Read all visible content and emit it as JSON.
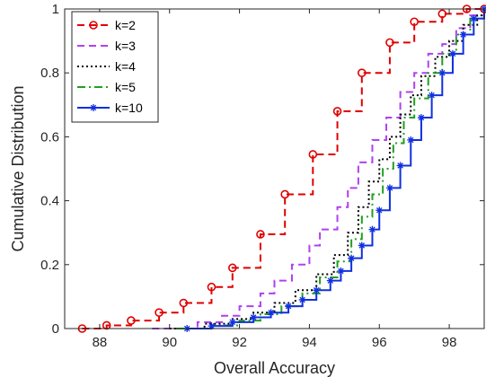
{
  "chart_data": {
    "type": "line",
    "xlabel": "Overall Accuracy",
    "ylabel": "Cumulative Distribution",
    "xlim": [
      87,
      99
    ],
    "ylim": [
      0,
      1
    ],
    "xticks": [
      88,
      90,
      92,
      94,
      96,
      98
    ],
    "yticks": [
      0,
      0.2,
      0.4,
      0.6,
      0.8,
      1
    ],
    "xtick_labels": [
      "88",
      "90",
      "92",
      "94",
      "96",
      "98"
    ],
    "ytick_labels": [
      "0",
      "0.2",
      "0.4",
      "0.6",
      "0.8",
      "1"
    ],
    "grid": false,
    "legend_position": "top-left",
    "series": [
      {
        "name": "k=2",
        "color": "#e00000",
        "dash": "dashed",
        "marker": "circle",
        "x": [
          87.5,
          88.2,
          88.9,
          89.7,
          90.4,
          91.2,
          91.8,
          92.6,
          93.3,
          94.1,
          94.8,
          95.5,
          96.3,
          97.0,
          97.8,
          98.5,
          99.0
        ],
        "y": [
          0.0,
          0.01,
          0.025,
          0.05,
          0.08,
          0.13,
          0.19,
          0.295,
          0.42,
          0.545,
          0.68,
          0.8,
          0.895,
          0.96,
          0.985,
          1.0,
          1.0
        ]
      },
      {
        "name": "k=3",
        "color": "#b040f0",
        "dash": "dashed",
        "marker": "none",
        "x": [
          89.5,
          90.8,
          91.5,
          92.0,
          92.6,
          93.0,
          93.5,
          94.0,
          94.3,
          94.8,
          95.1,
          95.4,
          95.8,
          96.2,
          96.6,
          97.0,
          97.4,
          97.8,
          98.2,
          98.6,
          99.0
        ],
        "y": [
          0.0,
          0.02,
          0.04,
          0.07,
          0.11,
          0.15,
          0.2,
          0.26,
          0.31,
          0.38,
          0.44,
          0.52,
          0.59,
          0.66,
          0.74,
          0.8,
          0.86,
          0.89,
          0.94,
          0.98,
          1.0
        ]
      },
      {
        "name": "k=4",
        "color": "#000000",
        "dash": "dotted",
        "marker": "none",
        "x": [
          90.0,
          91.0,
          91.8,
          92.4,
          93.0,
          93.6,
          94.2,
          94.7,
          95.1,
          95.4,
          95.7,
          96.0,
          96.3,
          96.6,
          96.9,
          97.2,
          97.6,
          98.0,
          98.4,
          98.8,
          99.0
        ],
        "y": [
          0.0,
          0.015,
          0.03,
          0.05,
          0.08,
          0.12,
          0.17,
          0.23,
          0.3,
          0.38,
          0.46,
          0.53,
          0.6,
          0.67,
          0.73,
          0.79,
          0.85,
          0.9,
          0.95,
          0.98,
          1.0
        ]
      },
      {
        "name": "k=5",
        "color": "#20a020",
        "dash": "dashdot",
        "marker": "none",
        "x": [
          90.2,
          91.2,
          92.0,
          92.6,
          93.2,
          93.8,
          94.3,
          94.8,
          95.2,
          95.5,
          95.8,
          96.1,
          96.4,
          96.7,
          97.0,
          97.4,
          97.8,
          98.2,
          98.6,
          99.0
        ],
        "y": [
          0.0,
          0.01,
          0.025,
          0.045,
          0.07,
          0.11,
          0.16,
          0.21,
          0.28,
          0.35,
          0.42,
          0.5,
          0.58,
          0.66,
          0.72,
          0.8,
          0.86,
          0.92,
          0.97,
          1.0
        ]
      },
      {
        "name": "k=10",
        "color": "#1030e0",
        "dash": "solid",
        "marker": "star",
        "x": [
          90.5,
          91.2,
          91.8,
          92.4,
          92.9,
          93.4,
          93.8,
          94.2,
          94.6,
          94.9,
          95.2,
          95.5,
          95.8,
          96.0,
          96.3,
          96.6,
          96.9,
          97.2,
          97.5,
          97.8,
          98.1,
          98.4,
          98.7,
          99.0
        ],
        "y": [
          0.0,
          0.008,
          0.02,
          0.035,
          0.05,
          0.07,
          0.09,
          0.12,
          0.15,
          0.18,
          0.22,
          0.26,
          0.31,
          0.37,
          0.44,
          0.51,
          0.59,
          0.66,
          0.73,
          0.8,
          0.86,
          0.92,
          0.97,
          1.0
        ]
      }
    ]
  }
}
